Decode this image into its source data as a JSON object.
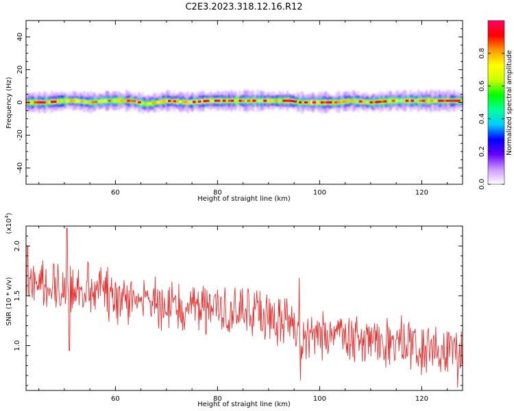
{
  "figure": {
    "title": "C2E3.2023.318.12.16.R12"
  },
  "chart_data": [
    {
      "type": "heatmap",
      "title": "C2E3.2023.318.12.16.R12",
      "xlabel": "Height of straight line (km)",
      "ylabel": "Frequency (Hz)",
      "xlim": [
        42.5,
        128
      ],
      "ylim": [
        -50,
        50
      ],
      "xticks": [
        60,
        80,
        100,
        120
      ],
      "yticks": [
        40,
        20,
        0,
        -20,
        -40
      ],
      "ytick_labels": [
        "40",
        "20",
        "0",
        "-20",
        "-40"
      ],
      "band_center_hz": 0,
      "band_halfwidth_hz": 4,
      "peak_ridge": {
        "x": [
          42.5,
          46,
          50,
          52,
          55,
          58,
          60,
          63,
          66,
          70,
          74,
          78,
          82,
          86,
          90,
          94,
          96,
          98,
          100,
          103,
          106,
          110,
          114,
          118,
          122,
          125,
          128
        ],
        "freq": [
          0,
          0,
          1,
          1,
          0,
          1,
          1,
          1,
          -1,
          1,
          0,
          1,
          1,
          1,
          1,
          1,
          0,
          0,
          0,
          0,
          1,
          0,
          1,
          1,
          1,
          1,
          1
        ],
        "amplitude": [
          0.9,
          0.85,
          0.8,
          0.75,
          0.9,
          0.7,
          0.8,
          0.85,
          0.7,
          0.8,
          0.75,
          0.95,
          0.9,
          0.85,
          0.8,
          0.9,
          0.8,
          0.95,
          0.9,
          0.85,
          0.8,
          0.85,
          0.8,
          0.9,
          0.85,
          0.9,
          0.9
        ]
      },
      "colorbar": {
        "label": "Normalized spectral amplitude",
        "range": [
          0,
          1
        ],
        "ticks": [
          0.0,
          0.2,
          0.4,
          0.6,
          0.8
        ],
        "tick_labels": [
          "0.0",
          "0.2",
          "0.4",
          "0.6",
          "0.8"
        ],
        "colormap": [
          "#ffffff",
          "#cc99ff",
          "#6600ff",
          "#0000ff",
          "#00ccff",
          "#00ff99",
          "#00ff00",
          "#ccff00",
          "#ffff00",
          "#ff9900",
          "#ff0000",
          "#ff0066"
        ]
      }
    },
    {
      "type": "line",
      "xlabel": "Height of straight line (km)",
      "ylabel": "SNR (10 * v/v)",
      "yscale_label": "(x10",
      "yscale_exp": "4",
      "yscale_close": ")",
      "xlim": [
        42.5,
        128
      ],
      "ylim": [
        0.55,
        2.2
      ],
      "xticks": [
        60,
        80,
        100,
        120
      ],
      "yticks": [
        1.0,
        1.5,
        2.0
      ],
      "ytick_labels": [
        "1.0",
        "1.5",
        "2.0"
      ],
      "series": [
        {
          "color": "#e83030",
          "x": [
            42.5,
            44,
            46,
            48,
            50,
            51,
            52,
            54,
            56,
            58,
            60,
            62,
            64,
            66,
            68,
            70,
            72,
            74,
            76,
            78,
            80,
            82,
            84,
            86,
            88,
            90,
            92,
            94,
            95,
            96,
            98,
            100,
            102,
            104,
            106,
            108,
            110,
            112,
            114,
            116,
            118,
            120,
            122,
            124,
            126,
            128
          ],
          "y": [
            1.62,
            1.66,
            1.6,
            1.63,
            1.58,
            1.62,
            1.58,
            1.57,
            1.55,
            1.52,
            1.5,
            1.47,
            1.49,
            1.45,
            1.43,
            1.4,
            1.41,
            1.38,
            1.4,
            1.36,
            1.35,
            1.34,
            1.35,
            1.32,
            1.3,
            1.28,
            1.27,
            1.28,
            1.15,
            1.09,
            1.12,
            1.1,
            1.1,
            1.08,
            1.09,
            1.02,
            1.05,
            1.02,
            1.0,
            1.02,
            0.98,
            1.0,
            0.98,
            0.95,
            0.96,
            0.9
          ],
          "peaks": [
            {
              "x": 50.5,
              "y": 2.18
            },
            {
              "x": 51,
              "y": 0.95
            },
            {
              "x": 42.8,
              "y": 2.0
            },
            {
              "x": 96,
              "y": 1.68
            },
            {
              "x": 96.2,
              "y": 0.65
            },
            {
              "x": 127,
              "y": 0.58
            }
          ]
        }
      ]
    }
  ]
}
